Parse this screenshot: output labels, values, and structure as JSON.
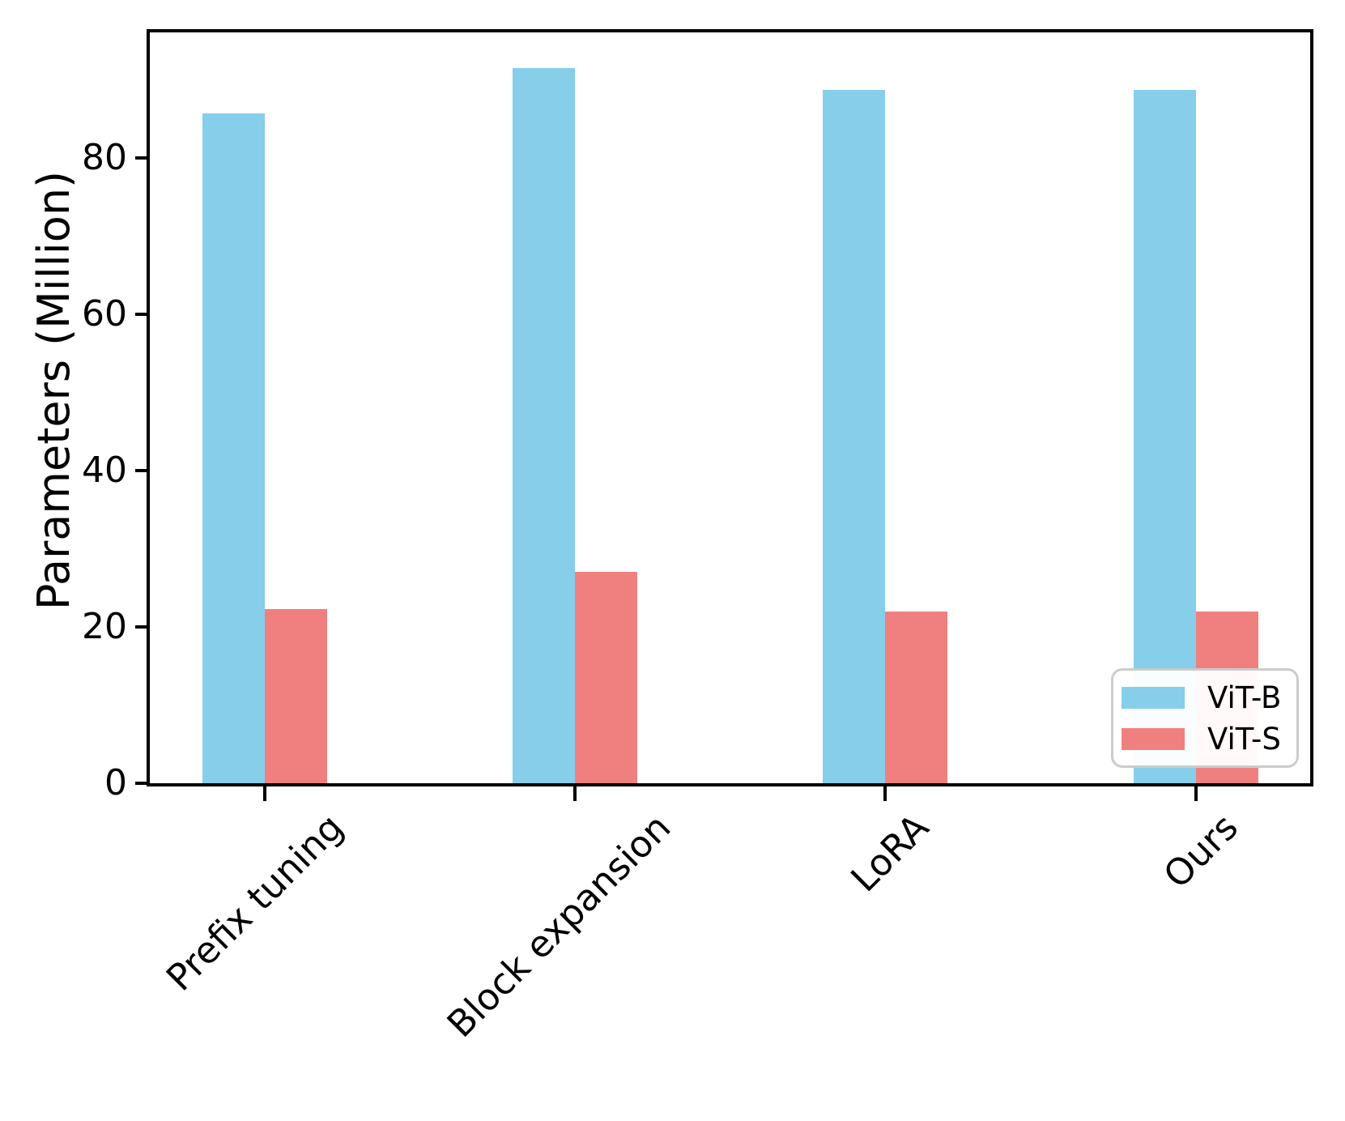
{
  "chart_data": {
    "type": "bar",
    "title": "",
    "xlabel": "",
    "ylabel": "Parameters (Million)",
    "categories": [
      "Prefix tuning",
      "Block expansion",
      "LoRA",
      "Ours"
    ],
    "series": [
      {
        "name": "ViT-B",
        "color": "#87CEEB",
        "values": [
          85.7,
          91.4,
          88.7,
          88.7
        ]
      },
      {
        "name": "ViT-S",
        "color": "#F08080",
        "values": [
          22.3,
          27.0,
          22.0,
          22.0
        ]
      }
    ],
    "ylim": [
      0,
      96
    ],
    "yticks": [
      0,
      20,
      40,
      60,
      80
    ],
    "grid": false,
    "x_tick_rotation_deg": 45,
    "legend": {
      "position": "lower-right",
      "entries": [
        "ViT-B",
        "ViT-S"
      ]
    },
    "axis_color": "#000000",
    "background_color": "#ffffff"
  }
}
